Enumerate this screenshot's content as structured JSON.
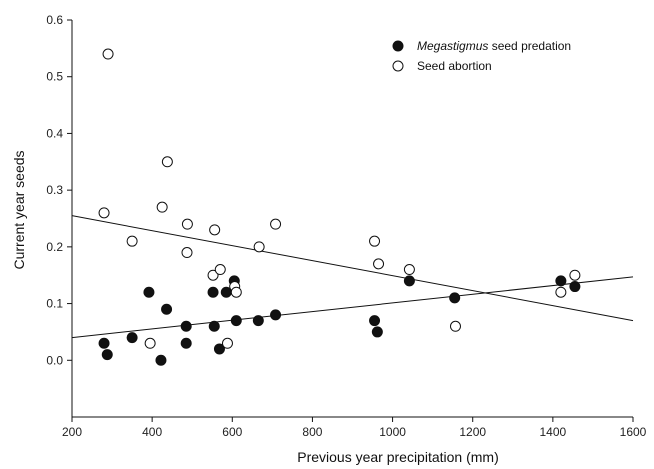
{
  "chart_data": {
    "type": "scatter",
    "xlabel": "Previous year precipitation (mm)",
    "ylabel": "Current year seeds",
    "xlim": [
      200,
      1600
    ],
    "ylim": [
      -0.1,
      0.6
    ],
    "xticks": [
      200,
      400,
      600,
      800,
      1000,
      1200,
      1400,
      1600
    ],
    "yticks": [
      0.0,
      0.1,
      0.2,
      0.3,
      0.4,
      0.5,
      0.6
    ],
    "grid": false,
    "legend_position": "top-right",
    "series": [
      {
        "name_italic": "Megastigmus",
        "name_rest": " seed predation",
        "marker": "filled-circle",
        "color": "#111111",
        "points": [
          [
            280,
            0.03
          ],
          [
            288,
            0.01
          ],
          [
            350,
            0.04
          ],
          [
            392,
            0.12
          ],
          [
            422,
            0.0
          ],
          [
            436,
            0.09
          ],
          [
            485,
            0.06
          ],
          [
            485,
            0.03
          ],
          [
            552,
            0.12
          ],
          [
            555,
            0.06
          ],
          [
            568,
            0.02
          ],
          [
            585,
            0.12
          ],
          [
            605,
            0.14
          ],
          [
            610,
            0.07
          ],
          [
            665,
            0.07
          ],
          [
            708,
            0.08
          ],
          [
            955,
            0.07
          ],
          [
            962,
            0.05
          ],
          [
            1042,
            0.14
          ],
          [
            1155,
            0.11
          ],
          [
            1420,
            0.14
          ],
          [
            1455,
            0.13
          ]
        ],
        "trendline": [
          [
            200,
            0.04
          ],
          [
            1600,
            0.147
          ]
        ]
      },
      {
        "name": "Seed abortion",
        "marker": "open-circle",
        "color": "#111111",
        "points": [
          [
            280,
            0.26
          ],
          [
            290,
            0.54
          ],
          [
            350,
            0.21
          ],
          [
            395,
            0.03
          ],
          [
            425,
            0.27
          ],
          [
            438,
            0.35
          ],
          [
            487,
            0.19
          ],
          [
            488,
            0.24
          ],
          [
            552,
            0.15
          ],
          [
            556,
            0.23
          ],
          [
            570,
            0.16
          ],
          [
            588,
            0.03
          ],
          [
            606,
            0.13
          ],
          [
            610,
            0.12
          ],
          [
            667,
            0.2
          ],
          [
            708,
            0.24
          ],
          [
            955,
            0.21
          ],
          [
            965,
            0.17
          ],
          [
            1042,
            0.16
          ],
          [
            1157,
            0.06
          ],
          [
            1420,
            0.12
          ],
          [
            1455,
            0.15
          ]
        ],
        "trendline": [
          [
            200,
            0.255
          ],
          [
            1600,
            0.07
          ]
        ]
      }
    ]
  }
}
